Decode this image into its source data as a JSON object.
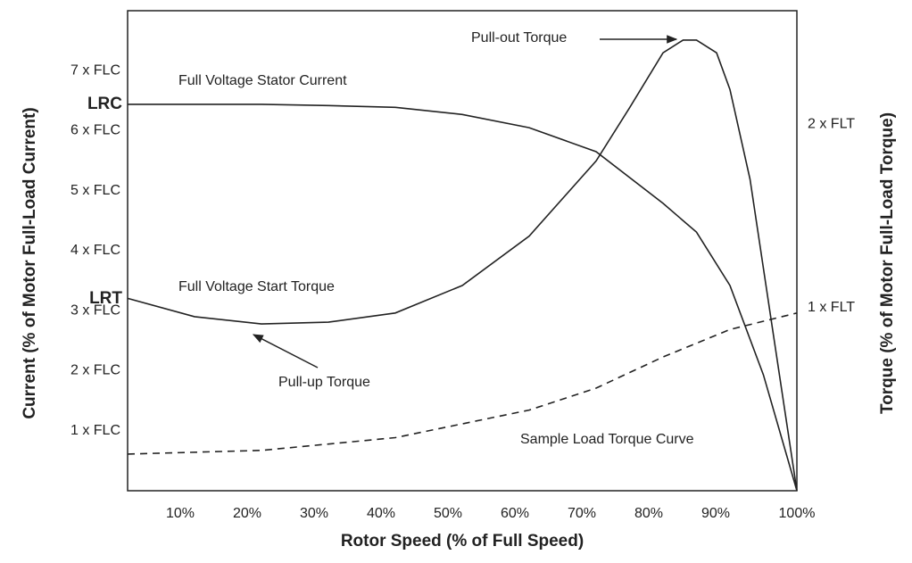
{
  "chart_data": {
    "type": "line",
    "xlabel": "Rotor Speed (% of Full Speed)",
    "ylabel": "Current (% of Motor Full-Load Current)",
    "y2label": "Torque (% of Motor Full-Load Torque)",
    "xlim": [
      0,
      100
    ],
    "ylim": [
      0,
      8
    ],
    "y2lim": [
      0,
      2.62
    ],
    "xticks": [
      {
        "value": 10,
        "label": "10%"
      },
      {
        "value": 20,
        "label": "20%"
      },
      {
        "value": 30,
        "label": "30%"
      },
      {
        "value": 40,
        "label": "40%"
      },
      {
        "value": 50,
        "label": "50%"
      },
      {
        "value": 60,
        "label": "60%"
      },
      {
        "value": 70,
        "label": "70%"
      },
      {
        "value": 80,
        "label": "80%"
      },
      {
        "value": 90,
        "label": "90%"
      },
      {
        "value": 100,
        "label": "100%"
      }
    ],
    "yticks": [
      {
        "value": 1,
        "label": "1 x FLC"
      },
      {
        "value": 2,
        "label": "2 x FLC"
      },
      {
        "value": 3,
        "label": "3 x FLC"
      },
      {
        "value": 4,
        "label": "4 x FLC"
      },
      {
        "value": 5,
        "label": "5 x FLC"
      },
      {
        "value": 6,
        "label": "6 x FLC"
      },
      {
        "value": 7,
        "label": "7 x FLC"
      }
    ],
    "y2ticks": [
      {
        "value": 1,
        "label": "1 x FLT"
      },
      {
        "value": 2,
        "label": "2 x FLT"
      }
    ],
    "y_markers": [
      {
        "value": 6.44,
        "label": "LRC"
      },
      {
        "value": 3.2,
        "label": "LRT"
      }
    ],
    "series": [
      {
        "name": "Full Voltage Stator Current",
        "color": "#222",
        "x": [
          0,
          20,
          30,
          40,
          50,
          60,
          70,
          80,
          85,
          90,
          95,
          100
        ],
        "values": [
          6.44,
          6.44,
          6.42,
          6.39,
          6.27,
          6.05,
          5.65,
          4.79,
          4.31,
          3.42,
          1.93,
          0
        ]
      },
      {
        "name": "Full Voltage Start Torque",
        "color": "#222",
        "axis": "y2",
        "x": [
          0,
          10,
          20,
          30,
          40,
          50,
          60,
          70,
          75,
          80,
          83,
          85,
          88,
          90,
          93,
          96,
          100
        ],
        "values": [
          1.05,
          0.95,
          0.91,
          0.92,
          0.97,
          1.12,
          1.39,
          1.8,
          2.09,
          2.39,
          2.46,
          2.46,
          2.39,
          2.19,
          1.7,
          0.97,
          0
        ]
      },
      {
        "name": "Sample Load Torque Curve",
        "color": "#222",
        "dashed": true,
        "axis": "y2",
        "x": [
          0,
          20,
          40,
          60,
          70,
          80,
          90,
          100
        ],
        "values": [
          0.2,
          0.22,
          0.29,
          0.44,
          0.56,
          0.73,
          0.88,
          0.97
        ]
      }
    ],
    "annotations": [
      "Pull-out Torque",
      "Pull-up Torque"
    ]
  }
}
